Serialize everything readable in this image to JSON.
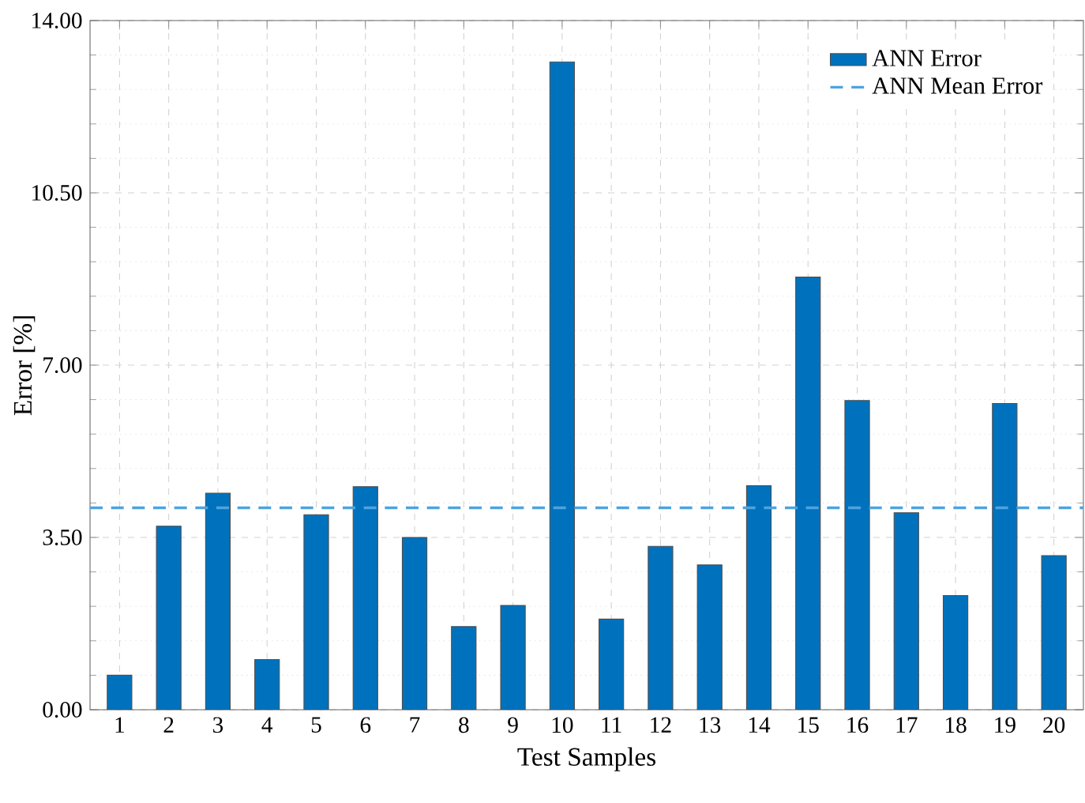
{
  "chart_data": {
    "type": "bar",
    "xlabel": "Test Samples",
    "ylabel": "Error [%]",
    "categories": [
      "1",
      "2",
      "3",
      "4",
      "5",
      "6",
      "7",
      "8",
      "9",
      "10",
      "11",
      "12",
      "13",
      "14",
      "15",
      "16",
      "17",
      "18",
      "19",
      "20"
    ],
    "series": [
      {
        "name": "ANN Error",
        "color": "#0072bd",
        "values": [
          0.7,
          3.73,
          4.4,
          1.02,
          3.96,
          4.53,
          3.5,
          1.69,
          2.12,
          13.16,
          1.84,
          3.32,
          2.94,
          4.55,
          8.79,
          6.28,
          4.0,
          2.32,
          6.22,
          3.13
        ]
      }
    ],
    "ref_lines": [
      {
        "axis": "y",
        "value": 4.1,
        "label": "ANN Mean Error",
        "color": "#4da3e0",
        "line_style": "dashed"
      }
    ],
    "ylim": [
      0,
      14
    ],
    "yticks": [
      {
        "value": 0,
        "label": "0.00"
      },
      {
        "value": 3.5,
        "label": "3.50"
      },
      {
        "value": 7,
        "label": "7.00"
      },
      {
        "value": 10.5,
        "label": "10.50"
      },
      {
        "value": 14,
        "label": "14.00"
      }
    ],
    "grid": true,
    "legend": "top right"
  }
}
